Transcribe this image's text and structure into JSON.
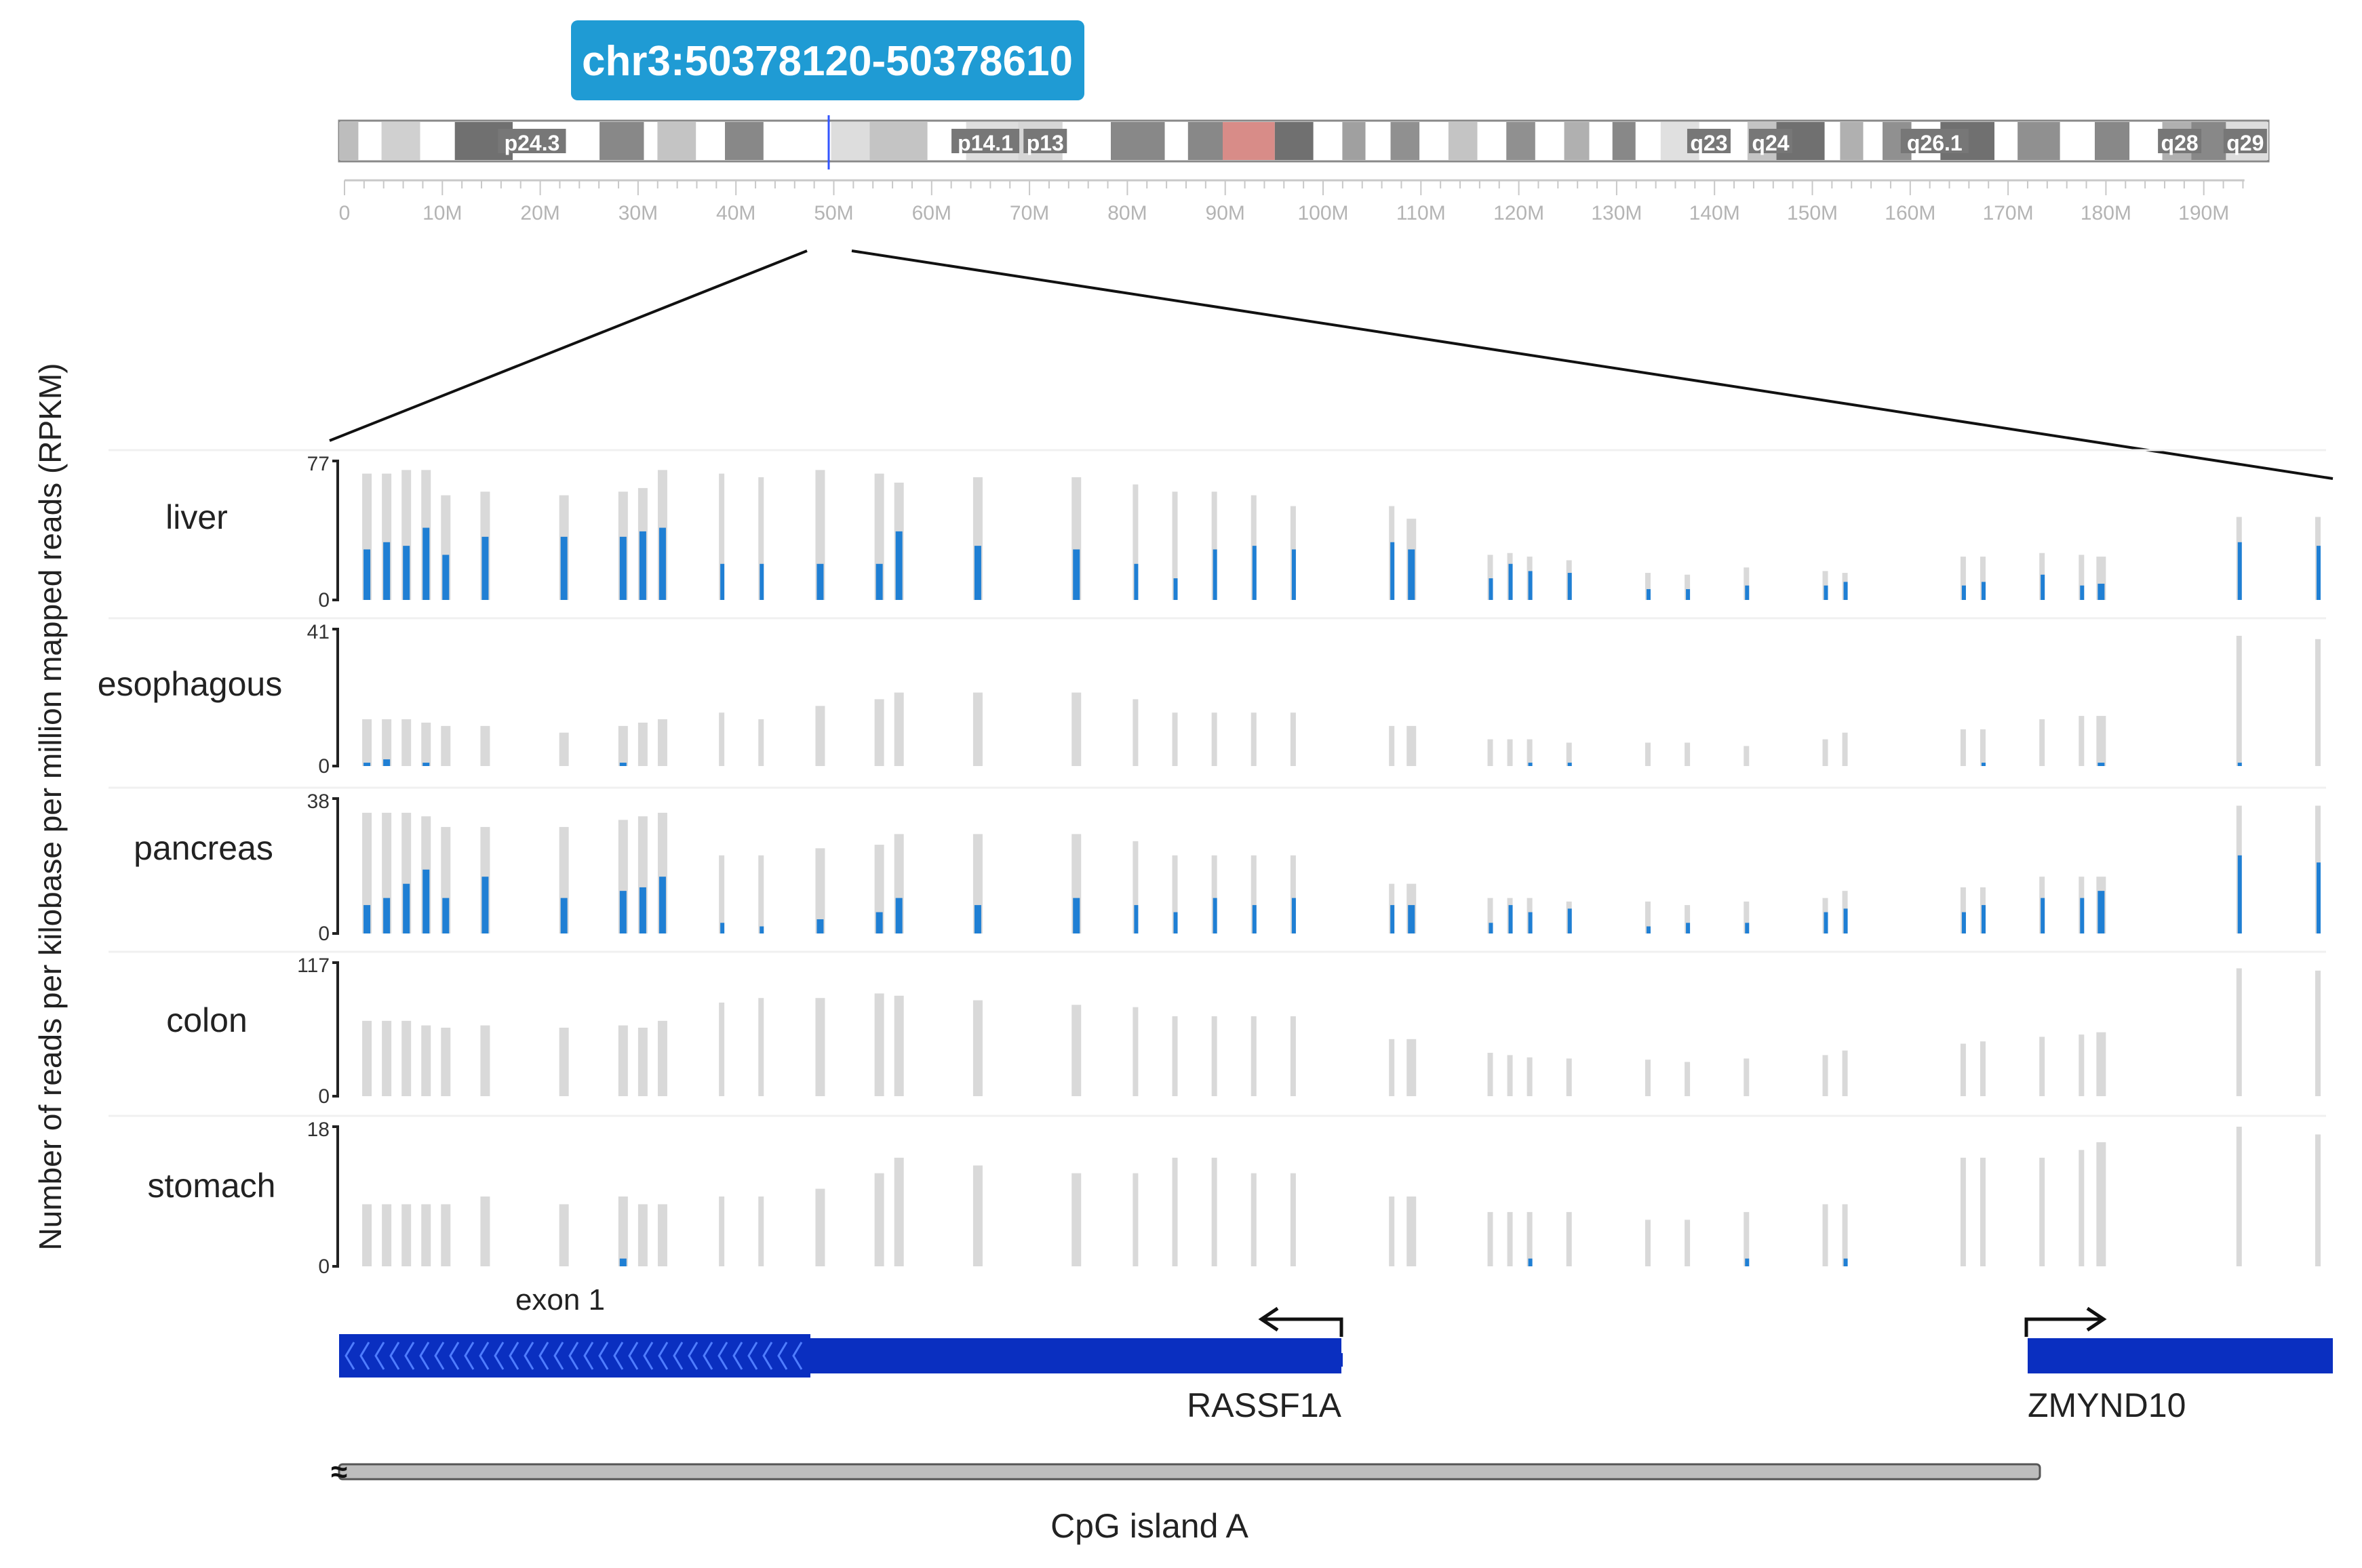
{
  "chart_data": {
    "type": "bar",
    "title": "chr3:50378120-50378610",
    "ylabel": "Number of reads per kilobase per million mapped reads (RPKM)",
    "ideogram": {
      "chromosome": "chr3",
      "bands": [
        "p24.3",
        "p14.1",
        "p13",
        "q23",
        "q24",
        "q26.1",
        "q28",
        "q29"
      ],
      "ticks": [
        "0",
        "10M",
        "20M",
        "30M",
        "40M",
        "50M",
        "60M",
        "70M",
        "80M",
        "90M",
        "100M",
        "110M",
        "120M",
        "130M",
        "140M",
        "150M",
        "160M",
        "170M",
        "180M",
        "190M"
      ]
    },
    "tissues": [
      {
        "name": "liver",
        "ymax": "77",
        "ymin": "0",
        "ylim": [
          0,
          77
        ],
        "positions": [
          0.01,
          0.02,
          0.03,
          0.04,
          0.05,
          0.07,
          0.11,
          0.14,
          0.15,
          0.16,
          0.19,
          0.21,
          0.24,
          0.27,
          0.28,
          0.32,
          0.37,
          0.4,
          0.42,
          0.44,
          0.46,
          0.48,
          0.53,
          0.54,
          0.58,
          0.59,
          0.6,
          0.62,
          0.66,
          0.68,
          0.71,
          0.75,
          0.76,
          0.82,
          0.83,
          0.86,
          0.88,
          0.89,
          0.96,
          1.0
        ],
        "total": [
          70,
          70,
          72,
          72,
          58,
          60,
          58,
          60,
          62,
          72,
          70,
          68,
          72,
          70,
          65,
          68,
          68,
          64,
          60,
          60,
          58,
          52,
          52,
          45,
          25,
          26,
          24,
          22,
          15,
          14,
          18,
          16,
          15,
          24,
          24,
          26,
          25,
          24,
          46,
          46
        ],
        "methylated": [
          28,
          32,
          30,
          40,
          25,
          35,
          35,
          35,
          38,
          40,
          20,
          20,
          20,
          20,
          38,
          30,
          28,
          20,
          12,
          28,
          30,
          28,
          32,
          28,
          12,
          20,
          16,
          15,
          6,
          6,
          8,
          8,
          10,
          8,
          10,
          14,
          8,
          9,
          32,
          30
        ]
      },
      {
        "name": "esophagous",
        "ymax": "41",
        "ymin": "0",
        "ylim": [
          0,
          41
        ],
        "positions": [
          0.01,
          0.02,
          0.03,
          0.04,
          0.05,
          0.07,
          0.11,
          0.14,
          0.15,
          0.16,
          0.19,
          0.21,
          0.24,
          0.27,
          0.28,
          0.32,
          0.37,
          0.4,
          0.42,
          0.44,
          0.46,
          0.48,
          0.53,
          0.54,
          0.58,
          0.59,
          0.6,
          0.62,
          0.66,
          0.68,
          0.71,
          0.75,
          0.76,
          0.82,
          0.83,
          0.86,
          0.88,
          0.89,
          0.96,
          1.0
        ],
        "total": [
          14,
          14,
          14,
          13,
          12,
          12,
          10,
          12,
          13,
          14,
          16,
          14,
          18,
          20,
          22,
          22,
          22,
          20,
          16,
          16,
          16,
          16,
          12,
          12,
          8,
          8,
          8,
          7,
          7,
          7,
          6,
          8,
          10,
          11,
          11,
          14,
          15,
          15,
          39,
          38
        ],
        "methylated": [
          1,
          2,
          0,
          1,
          0,
          0,
          0,
          1,
          0,
          0,
          0,
          0,
          0,
          0,
          0,
          0,
          0,
          0,
          0,
          0,
          0,
          0,
          0,
          0,
          0,
          0,
          1,
          1,
          0,
          0,
          0,
          0,
          0,
          0,
          1,
          0,
          0,
          1,
          1,
          0
        ]
      },
      {
        "name": "pancreas",
        "ymax": "38",
        "ymin": "0",
        "ylim": [
          0,
          38
        ],
        "positions": [
          0.01,
          0.02,
          0.03,
          0.04,
          0.05,
          0.07,
          0.11,
          0.14,
          0.15,
          0.16,
          0.19,
          0.21,
          0.24,
          0.27,
          0.28,
          0.32,
          0.37,
          0.4,
          0.42,
          0.44,
          0.46,
          0.48,
          0.53,
          0.54,
          0.58,
          0.59,
          0.6,
          0.62,
          0.66,
          0.68,
          0.71,
          0.75,
          0.76,
          0.82,
          0.83,
          0.86,
          0.88,
          0.89,
          0.96,
          1.0
        ],
        "total": [
          34,
          34,
          34,
          33,
          30,
          30,
          30,
          32,
          33,
          34,
          22,
          22,
          24,
          25,
          28,
          28,
          28,
          26,
          22,
          22,
          22,
          22,
          14,
          14,
          10,
          10,
          10,
          9,
          9,
          8,
          9,
          10,
          12,
          13,
          13,
          16,
          16,
          16,
          36,
          36
        ],
        "methylated": [
          8,
          10,
          14,
          18,
          10,
          16,
          10,
          12,
          13,
          16,
          3,
          2,
          4,
          6,
          10,
          8,
          10,
          8,
          6,
          10,
          8,
          10,
          8,
          8,
          3,
          8,
          6,
          7,
          2,
          3,
          3,
          6,
          7,
          6,
          8,
          10,
          10,
          12,
          22,
          20
        ]
      },
      {
        "name": "colon",
        "ymax": "117",
        "ymin": "0",
        "ylim": [
          0,
          117
        ],
        "positions": [
          0.01,
          0.02,
          0.03,
          0.04,
          0.05,
          0.07,
          0.11,
          0.14,
          0.15,
          0.16,
          0.19,
          0.21,
          0.24,
          0.27,
          0.28,
          0.32,
          0.37,
          0.4,
          0.42,
          0.44,
          0.46,
          0.48,
          0.53,
          0.54,
          0.58,
          0.59,
          0.6,
          0.62,
          0.66,
          0.68,
          0.71,
          0.75,
          0.76,
          0.82,
          0.83,
          0.86,
          0.88,
          0.89,
          0.96,
          1.0
        ],
        "total": [
          66,
          66,
          66,
          62,
          60,
          62,
          60,
          62,
          60,
          66,
          82,
          86,
          86,
          90,
          88,
          84,
          80,
          78,
          70,
          70,
          70,
          70,
          50,
          50,
          38,
          36,
          34,
          33,
          32,
          30,
          33,
          36,
          40,
          46,
          48,
          52,
          54,
          56,
          112,
          110
        ],
        "methylated": [
          0,
          0,
          0,
          0,
          0,
          0,
          0,
          0,
          0,
          0,
          0,
          0,
          0,
          0,
          0,
          0,
          0,
          0,
          0,
          0,
          0,
          0,
          0,
          0,
          0,
          0,
          0,
          0,
          0,
          0,
          0,
          0,
          0,
          0,
          0,
          0,
          0,
          0,
          0,
          0
        ]
      },
      {
        "name": "stomach",
        "ymax": "18",
        "ymin": "0",
        "ylim": [
          0,
          18
        ],
        "positions": [
          0.01,
          0.02,
          0.03,
          0.04,
          0.05,
          0.07,
          0.11,
          0.14,
          0.15,
          0.16,
          0.19,
          0.21,
          0.24,
          0.27,
          0.28,
          0.32,
          0.37,
          0.4,
          0.42,
          0.44,
          0.46,
          0.48,
          0.53,
          0.54,
          0.58,
          0.59,
          0.6,
          0.62,
          0.66,
          0.68,
          0.71,
          0.75,
          0.76,
          0.82,
          0.83,
          0.86,
          0.88,
          0.89,
          0.96,
          1.0
        ],
        "total": [
          8,
          8,
          8,
          8,
          8,
          9,
          8,
          9,
          8,
          8,
          9,
          9,
          10,
          12,
          14,
          13,
          12,
          12,
          14,
          14,
          12,
          12,
          9,
          9,
          7,
          7,
          7,
          7,
          6,
          6,
          7,
          8,
          8,
          14,
          14,
          14,
          15,
          16,
          18,
          17
        ],
        "methylated": [
          0,
          0,
          0,
          0,
          0,
          0,
          0,
          1,
          0,
          0,
          0,
          0,
          0,
          0,
          0,
          0,
          0,
          0,
          0,
          0,
          0,
          0,
          0,
          0,
          0,
          0,
          1,
          0,
          0,
          0,
          1,
          0,
          1,
          0,
          0,
          0,
          0,
          0,
          0,
          0
        ]
      }
    ],
    "genes": [
      {
        "name": "RASSF1A",
        "strand": "-",
        "exon_label": "exon 1"
      },
      {
        "name": "ZMYND10",
        "strand": "+"
      }
    ],
    "cpg_island": "CpG island A",
    "colors": {
      "total": "#d9d9d9",
      "methylated": "#1f7fd4",
      "gene": "#0a2fc0",
      "title_bg": "#1f9bd4",
      "highlight": "#d88c88"
    }
  }
}
